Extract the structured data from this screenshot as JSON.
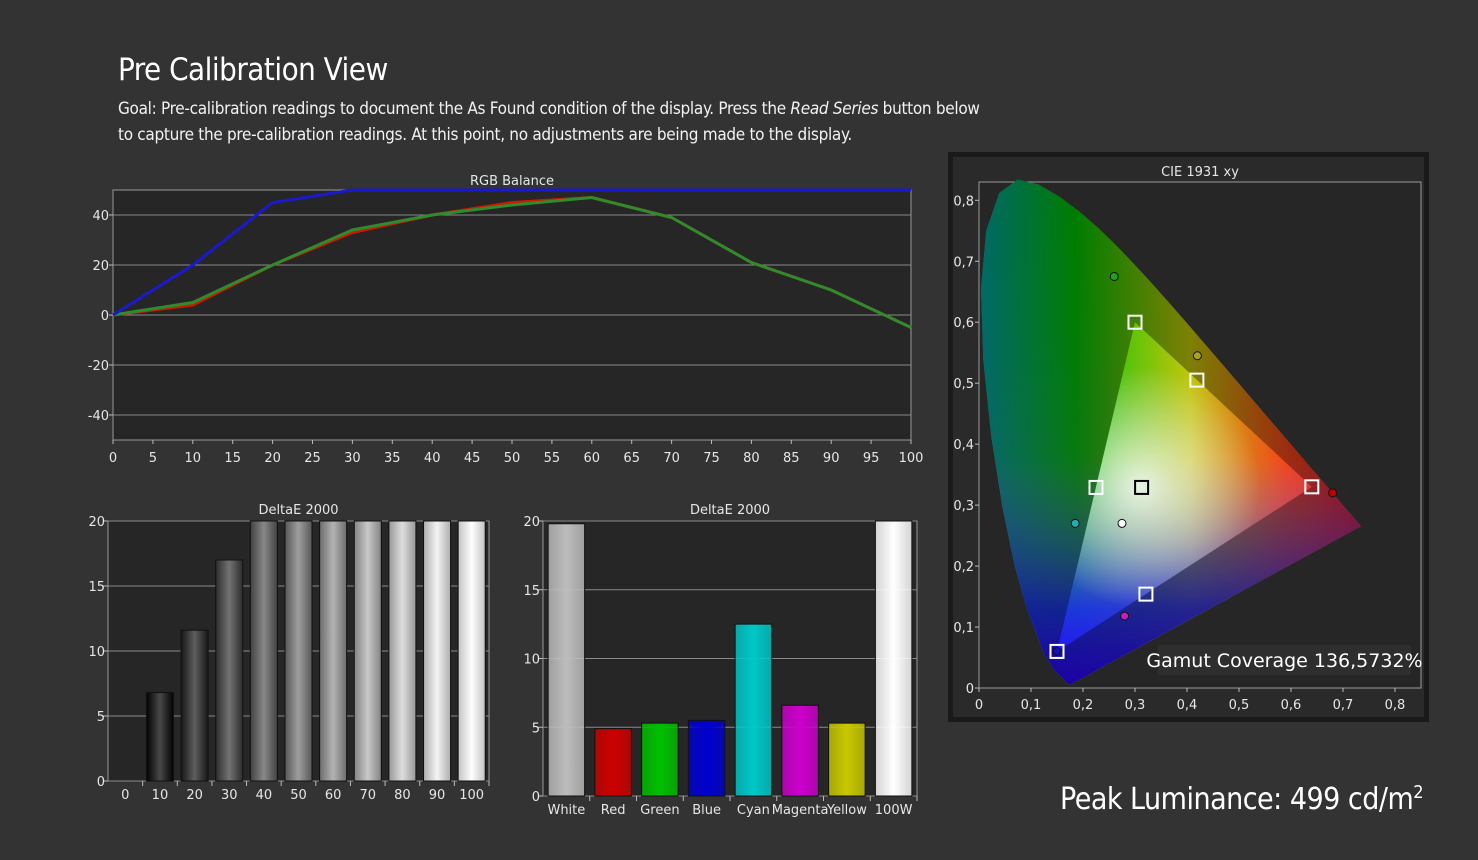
{
  "page": {
    "title": "Pre Calibration View",
    "goal_prefix": "Goal: Pre-calibration readings to document the As Found condition of the display. Press the ",
    "goal_italic": "Read Series",
    "goal_suffix": " button below to capture the pre-calibration readings. At this point, no adjustments are being made to the display.",
    "peak_luminance_label": "Peak Luminance: 499 cd/m",
    "peak_luminance_sup": "2"
  },
  "colors": {
    "background": "#333333",
    "plot_bg": "#262626",
    "red_line": "#cc1a00",
    "green_line": "#2e8b2e",
    "blue_line": "#1a1acc"
  },
  "chart_data": [
    {
      "id": "rgb_balance",
      "type": "line",
      "title": "RGB Balance",
      "x": [
        0,
        10,
        20,
        30,
        40,
        50,
        60,
        70,
        80,
        90,
        100
      ],
      "xlim": [
        0,
        100
      ],
      "ylim": [
        -50,
        50
      ],
      "xticks": [
        0,
        5,
        10,
        15,
        20,
        25,
        30,
        35,
        40,
        45,
        50,
        55,
        60,
        65,
        70,
        75,
        80,
        85,
        90,
        95,
        100
      ],
      "yticks": [
        40,
        20,
        0,
        -20,
        -40
      ],
      "series": [
        {
          "color": "#cc1a00",
          "values": [
            0,
            4,
            20,
            33,
            40,
            45,
            47,
            39,
            21,
            10,
            -5
          ]
        },
        {
          "color": "#2e8b2e",
          "values": [
            0,
            5,
            20,
            34,
            40,
            44,
            47,
            39,
            21,
            10,
            -5
          ]
        },
        {
          "color": "#1a1acc",
          "values": [
            0,
            20,
            45,
            50,
            50,
            50,
            50,
            50,
            50,
            50,
            50
          ]
        }
      ],
      "grid": true
    },
    {
      "id": "deltae_grayscale",
      "type": "bar",
      "title": "DeltaE 2000",
      "categories": [
        "0",
        "10",
        "20",
        "30",
        "40",
        "50",
        "60",
        "70",
        "80",
        "90",
        "100"
      ],
      "values": [
        0,
        6.8,
        11.6,
        17,
        20,
        20,
        20,
        20,
        20,
        20,
        20
      ],
      "ylim": [
        0,
        20
      ],
      "yticks": [
        20,
        15,
        10,
        5,
        0
      ],
      "grid": true
    },
    {
      "id": "deltae_color",
      "type": "bar",
      "title": "DeltaE 2000",
      "categories": [
        "White",
        "Red",
        "Green",
        "Blue",
        "Cyan",
        "Magenta",
        "Yellow",
        "100W"
      ],
      "values": [
        19.8,
        4.9,
        5.3,
        5.5,
        12.5,
        6.6,
        5.3,
        20
      ],
      "bar_colors": [
        "#bdbdbd",
        "#cc0000",
        "#00c000",
        "#0000d0",
        "#00c8c8",
        "#cc00cc",
        "#c8c800",
        "#ffffff"
      ],
      "ylim": [
        0,
        20
      ],
      "yticks": [
        20,
        15,
        10,
        5,
        0
      ],
      "grid": true
    },
    {
      "id": "cie_1931",
      "type": "scatter",
      "title": "CIE 1931 xy",
      "xlim": [
        0,
        0.85
      ],
      "ylim": [
        0,
        0.83
      ],
      "xticks": [
        "0",
        "0,1",
        "0,2",
        "0,3",
        "0,4",
        "0,5",
        "0,6",
        "0,7",
        "0,8"
      ],
      "yticks": [
        "0,8",
        "0,7",
        "0,6",
        "0,5",
        "0,4",
        "0,3",
        "0,2",
        "0,1",
        "0"
      ],
      "targets": [
        {
          "name": "red",
          "x": 0.64,
          "y": 0.33
        },
        {
          "name": "green",
          "x": 0.3,
          "y": 0.6
        },
        {
          "name": "blue",
          "x": 0.15,
          "y": 0.06
        },
        {
          "name": "yellow",
          "x": 0.419,
          "y": 0.505
        },
        {
          "name": "cyan",
          "x": 0.225,
          "y": 0.329
        },
        {
          "name": "magenta",
          "x": 0.321,
          "y": 0.154
        },
        {
          "name": "white",
          "x": 0.3127,
          "y": 0.329
        }
      ],
      "measurements": [
        {
          "name": "red",
          "x": 0.68,
          "y": 0.32,
          "color": "#c00000"
        },
        {
          "name": "green",
          "x": 0.26,
          "y": 0.675,
          "color": "#22a022"
        },
        {
          "name": "blue",
          "x": 0.15,
          "y": 0.06,
          "color": "#1010c0"
        },
        {
          "name": "yellow",
          "x": 0.42,
          "y": 0.545,
          "color": "#b0a020"
        },
        {
          "name": "cyan",
          "x": 0.185,
          "y": 0.27,
          "color": "#20b0b0"
        },
        {
          "name": "magenta",
          "x": 0.28,
          "y": 0.118,
          "color": "#c020c0"
        },
        {
          "name": "white",
          "x": 0.275,
          "y": 0.27,
          "color": "#ffffff"
        }
      ],
      "gamut_coverage_label": "Gamut Coverage 136,5732%"
    }
  ]
}
